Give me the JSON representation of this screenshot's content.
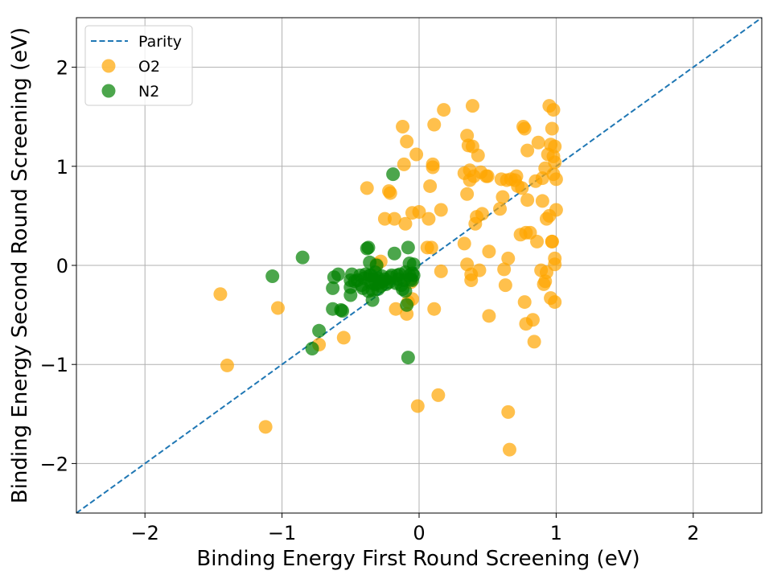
{
  "chart_data": {
    "type": "scatter",
    "xlabel": "Binding Energy First Round Screening (eV)",
    "ylabel": "Binding Energy Second Round Screening  (eV)",
    "xlim": [
      -2.5,
      2.5
    ],
    "ylim": [
      -2.5,
      2.5
    ],
    "xticks": [
      -2,
      -1,
      0,
      1,
      2
    ],
    "yticks": [
      -2,
      -1,
      0,
      1,
      2
    ],
    "tick_labels": [
      "−2",
      "−1",
      "0",
      "1",
      "2"
    ],
    "grid": true,
    "legend_position": "top-left",
    "parity": {
      "name": "Parity",
      "x": [
        -2.5,
        2.5
      ],
      "y": [
        -2.5,
        2.5
      ],
      "color": "#1f77b4"
    },
    "series": [
      {
        "name": "O2",
        "color": "#ffa500",
        "points": [
          [
            -1.45,
            -0.29
          ],
          [
            -1.4,
            -1.01
          ],
          [
            -1.12,
            -1.63
          ],
          [
            -1.03,
            -0.43
          ],
          [
            -0.73,
            -0.8
          ],
          [
            -0.55,
            -0.73
          ],
          [
            -0.38,
            0.78
          ],
          [
            -0.31,
            0.01
          ],
          [
            -0.28,
            0.04
          ],
          [
            -0.25,
            0.47
          ],
          [
            -0.22,
            0.75
          ],
          [
            -0.21,
            0.73
          ],
          [
            -0.18,
            0.47
          ],
          [
            -0.17,
            -0.44
          ],
          [
            -0.12,
            1.4
          ],
          [
            -0.11,
            1.02
          ],
          [
            -0.1,
            0.42
          ],
          [
            -0.09,
            1.25
          ],
          [
            -0.09,
            -0.49
          ],
          [
            -0.08,
            -0.37
          ],
          [
            -0.06,
            -0.17
          ],
          [
            -0.05,
            -0.34
          ],
          [
            -0.05,
            0.53
          ],
          [
            -0.02,
            1.12
          ],
          [
            -0.01,
            -1.42
          ],
          [
            0.0,
            0.54
          ],
          [
            0.06,
            0.18
          ],
          [
            0.07,
            0.47
          ],
          [
            0.08,
            0.8
          ],
          [
            0.09,
            0.18
          ],
          [
            0.1,
            0.99
          ],
          [
            0.1,
            1.02
          ],
          [
            0.11,
            1.42
          ],
          [
            0.11,
            -0.44
          ],
          [
            0.14,
            -1.31
          ],
          [
            0.16,
            -0.06
          ],
          [
            0.16,
            0.56
          ],
          [
            0.18,
            1.57
          ],
          [
            0.33,
            0.93
          ],
          [
            0.33,
            0.22
          ],
          [
            0.35,
            1.31
          ],
          [
            0.35,
            0.72
          ],
          [
            0.35,
            0.01
          ],
          [
            0.36,
            1.21
          ],
          [
            0.37,
            0.86
          ],
          [
            0.37,
            0.96
          ],
          [
            0.38,
            -0.09
          ],
          [
            0.38,
            -0.15
          ],
          [
            0.39,
            1.61
          ],
          [
            0.39,
            1.2
          ],
          [
            0.4,
            0.9
          ],
          [
            0.41,
            0.42
          ],
          [
            0.42,
            0.49
          ],
          [
            0.43,
            1.11
          ],
          [
            0.44,
            -0.05
          ],
          [
            0.45,
            0.94
          ],
          [
            0.46,
            0.52
          ],
          [
            0.49,
            0.9
          ],
          [
            0.5,
            0.9
          ],
          [
            0.51,
            0.14
          ],
          [
            0.51,
            -0.51
          ],
          [
            0.59,
            0.57
          ],
          [
            0.6,
            0.87
          ],
          [
            0.61,
            0.69
          ],
          [
            0.62,
            -0.04
          ],
          [
            0.63,
            -0.2
          ],
          [
            0.64,
            0.86
          ],
          [
            0.65,
            -1.48
          ],
          [
            0.65,
            0.07
          ],
          [
            0.66,
            -1.86
          ],
          [
            0.67,
            0.87
          ],
          [
            0.7,
            0.86
          ],
          [
            0.71,
            0.9
          ],
          [
            0.72,
            0.8
          ],
          [
            0.74,
            0.31
          ],
          [
            0.75,
            0.78
          ],
          [
            0.76,
            1.4
          ],
          [
            0.77,
            1.38
          ],
          [
            0.77,
            -0.37
          ],
          [
            0.78,
            -0.59
          ],
          [
            0.78,
            0.33
          ],
          [
            0.79,
            0.66
          ],
          [
            0.79,
            1.16
          ],
          [
            0.81,
            0.33
          ],
          [
            0.83,
            -0.55
          ],
          [
            0.84,
            -0.77
          ],
          [
            0.85,
            0.85
          ],
          [
            0.86,
            0.24
          ],
          [
            0.87,
            1.24
          ],
          [
            0.89,
            -0.05
          ],
          [
            0.9,
            0.65
          ],
          [
            0.9,
            0.88
          ],
          [
            0.91,
            -0.19
          ],
          [
            0.92,
            -0.16
          ],
          [
            0.92,
            0.98
          ],
          [
            0.93,
            0.47
          ],
          [
            0.93,
            -0.07
          ],
          [
            0.94,
            1.12
          ],
          [
            0.95,
            1.61
          ],
          [
            0.95,
            0.5
          ],
          [
            0.96,
            -0.33
          ],
          [
            0.96,
            1.22
          ],
          [
            0.97,
            0.24
          ],
          [
            0.97,
            1.38
          ],
          [
            0.97,
            0.24
          ],
          [
            0.98,
            1.57
          ],
          [
            0.98,
            0.92
          ],
          [
            0.98,
            1.1
          ],
          [
            0.99,
            -0.37
          ],
          [
            0.99,
            1.2
          ],
          [
            0.99,
            1.04
          ],
          [
            0.99,
            0.01
          ],
          [
            0.99,
            0.07
          ],
          [
            1.0,
            0.56
          ],
          [
            1.0,
            0.87
          ]
        ]
      },
      {
        "name": "N2",
        "color": "#008000",
        "points": [
          [
            -1.07,
            -0.11
          ],
          [
            -0.85,
            0.08
          ],
          [
            -0.78,
            -0.84
          ],
          [
            -0.73,
            -0.66
          ],
          [
            -0.63,
            -0.44
          ],
          [
            -0.63,
            -0.23
          ],
          [
            -0.62,
            -0.12
          ],
          [
            -0.59,
            -0.09
          ],
          [
            -0.57,
            -0.45
          ],
          [
            -0.56,
            -0.46
          ],
          [
            -0.5,
            -0.15
          ],
          [
            -0.5,
            -0.22
          ],
          [
            -0.5,
            -0.3
          ],
          [
            -0.49,
            -0.09
          ],
          [
            -0.47,
            -0.16
          ],
          [
            -0.45,
            -0.15
          ],
          [
            -0.43,
            -0.1
          ],
          [
            -0.42,
            -0.2
          ],
          [
            -0.41,
            -0.23
          ],
          [
            -0.4,
            -0.13
          ],
          [
            -0.39,
            -0.09
          ],
          [
            -0.38,
            0.17
          ],
          [
            -0.37,
            0.18
          ],
          [
            -0.37,
            -0.26
          ],
          [
            -0.36,
            -0.1
          ],
          [
            -0.36,
            0.03
          ],
          [
            -0.35,
            -0.1
          ],
          [
            -0.35,
            -0.18
          ],
          [
            -0.34,
            -0.25
          ],
          [
            -0.34,
            -0.35
          ],
          [
            -0.33,
            -0.14
          ],
          [
            -0.32,
            -0.19
          ],
          [
            -0.32,
            -0.07
          ],
          [
            -0.31,
            0.0
          ],
          [
            -0.3,
            -0.24
          ],
          [
            -0.3,
            -0.13
          ],
          [
            -0.29,
            -0.18
          ],
          [
            -0.28,
            -0.21
          ],
          [
            -0.27,
            -0.11
          ],
          [
            -0.26,
            -0.16
          ],
          [
            -0.25,
            -0.14
          ],
          [
            -0.24,
            -0.19
          ],
          [
            -0.22,
            -0.17
          ],
          [
            -0.21,
            -0.12
          ],
          [
            -0.2,
            -0.1
          ],
          [
            -0.19,
            0.92
          ],
          [
            -0.18,
            0.12
          ],
          [
            -0.17,
            -0.18
          ],
          [
            -0.16,
            -0.1
          ],
          [
            -0.15,
            -0.14
          ],
          [
            -0.14,
            -0.09
          ],
          [
            -0.13,
            -0.2
          ],
          [
            -0.12,
            -0.24
          ],
          [
            -0.11,
            -0.15
          ],
          [
            -0.1,
            -0.26
          ],
          [
            -0.1,
            -0.07
          ],
          [
            -0.09,
            -0.4
          ],
          [
            -0.08,
            0.18
          ],
          [
            -0.08,
            -0.93
          ],
          [
            -0.07,
            -0.1
          ],
          [
            -0.07,
            0.02
          ],
          [
            -0.06,
            -0.14
          ],
          [
            -0.05,
            -0.08
          ],
          [
            -0.05,
            -0.15
          ],
          [
            -0.04,
            -0.1
          ],
          [
            -0.04,
            0.01
          ]
        ]
      }
    ]
  }
}
